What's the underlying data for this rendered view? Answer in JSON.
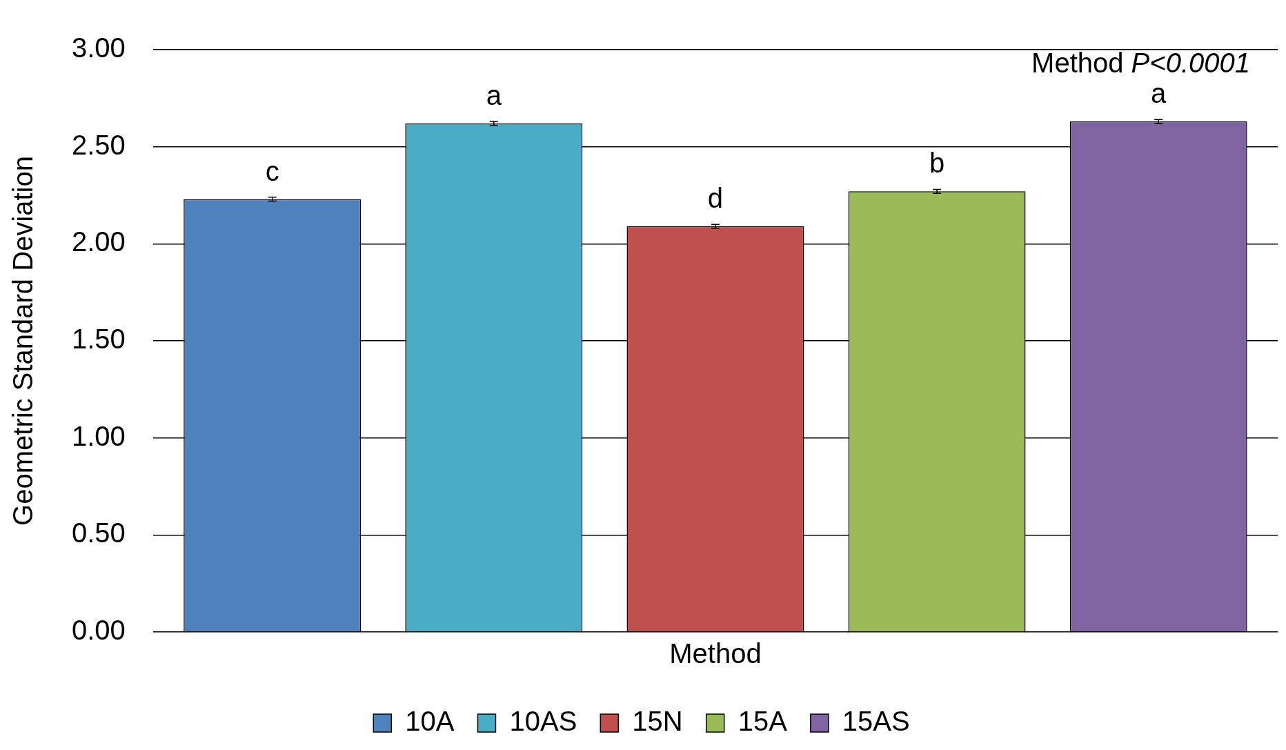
{
  "chart_data": {
    "type": "bar",
    "xlabel": "Method",
    "ylabel": "Geometric Standard Deviation",
    "categories": [
      null
    ],
    "series": [
      {
        "name": "10A",
        "color": "#4f81bd",
        "values": [
          2.23
        ],
        "errors": [
          0.01
        ]
      },
      {
        "name": "10AS",
        "color": "#4bacc6",
        "values": [
          2.62
        ],
        "errors": [
          0.01
        ]
      },
      {
        "name": "15N",
        "color": "#c0504d",
        "values": [
          2.09
        ],
        "errors": [
          0.01
        ]
      },
      {
        "name": "15A",
        "color": "#9bbb59",
        "values": [
          2.27
        ],
        "errors": [
          0.01
        ]
      },
      {
        "name": "15AS",
        "color": "#8064a2",
        "values": [
          2.63
        ],
        "errors": [
          0.01
        ]
      }
    ],
    "ylim": [
      0,
      3
    ],
    "yticks": [
      {
        "value": 0,
        "label": "0.00"
      },
      {
        "value": 0.5,
        "label": "0.50"
      },
      {
        "value": 1,
        "label": "1.00"
      },
      {
        "value": 1.5,
        "label": "1.50"
      },
      {
        "value": 2,
        "label": "2.00"
      },
      {
        "value": 2.5,
        "label": "2.50"
      },
      {
        "value": 3,
        "label": "3.00"
      }
    ],
    "grid": "y",
    "legend": "bottom",
    "annotations": [
      {
        "text": "c",
        "y": 2.23
      },
      {
        "text": "a",
        "y": 2.62
      },
      {
        "text": "d",
        "y": 2.09
      },
      {
        "text": "b",
        "y": 2.27
      },
      {
        "text": "a",
        "y": 2.63
      },
      "Method P<0.0001"
    ]
  }
}
